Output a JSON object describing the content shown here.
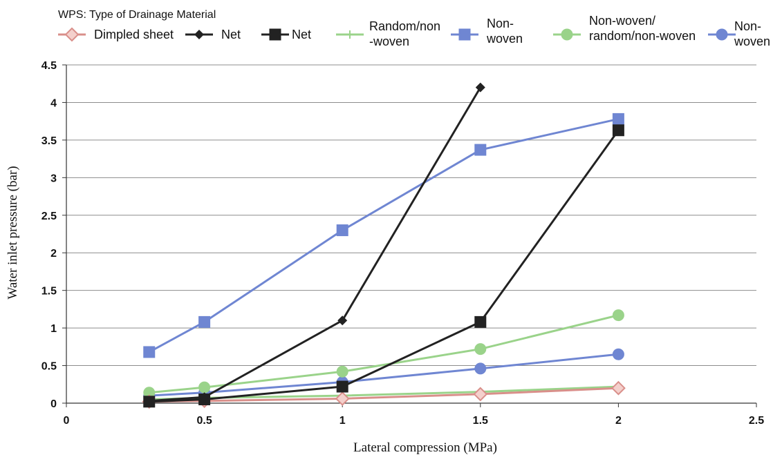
{
  "chart_data": {
    "type": "line",
    "legend_title": "WPS: Type of Drainage Material",
    "xlabel": "Lateral compression (MPa)",
    "ylabel": "Water inlet pressure (bar)",
    "xlim": [
      0,
      2.5
    ],
    "ylim": [
      0,
      4.5
    ],
    "xticks": [
      "0",
      "0.5",
      "1",
      "1.5",
      "2",
      "2.5"
    ],
    "yticks": [
      "0",
      "0.5",
      "1",
      "1.5",
      "2",
      "2.5",
      "3",
      "3.5",
      "4",
      "4.5"
    ],
    "grid": "horizontal",
    "legend_position": "top",
    "series": [
      {
        "name": "Dimpled sheet",
        "color": "#d98f8a",
        "marker": "diamond-open",
        "points": [
          [
            0.3,
            0.02
          ],
          [
            0.5,
            0.03
          ],
          [
            1.0,
            0.06
          ],
          [
            1.5,
            0.12
          ],
          [
            2.0,
            0.2
          ]
        ]
      },
      {
        "name": "Net",
        "color": "#222222",
        "marker": "diamond",
        "points": [
          [
            0.3,
            0.03
          ],
          [
            0.5,
            0.08
          ],
          [
            1.0,
            1.1
          ],
          [
            1.5,
            4.2
          ]
        ]
      },
      {
        "name": "Net",
        "color": "#222222",
        "marker": "square",
        "points": [
          [
            0.3,
            0.02
          ],
          [
            0.5,
            0.05
          ],
          [
            1.0,
            0.22
          ],
          [
            1.5,
            1.08
          ],
          [
            2.0,
            3.63
          ]
        ]
      },
      {
        "name_lines": [
          "Random/non",
          "-woven"
        ],
        "color": "#9ad38a",
        "marker": "star",
        "points": [
          [
            0.3,
            0.05
          ],
          [
            0.5,
            0.07
          ],
          [
            1.0,
            0.1
          ],
          [
            1.5,
            0.15
          ],
          [
            2.0,
            0.22
          ]
        ]
      },
      {
        "name_lines": [
          "Non-",
          "woven"
        ],
        "color": "#6f86d2",
        "marker": "square",
        "points": [
          [
            0.3,
            0.68
          ],
          [
            0.5,
            1.08
          ],
          [
            1.0,
            2.3
          ],
          [
            1.5,
            3.37
          ],
          [
            2.0,
            3.78
          ]
        ]
      },
      {
        "name_lines": [
          "Non-woven/",
          "random/non-woven"
        ],
        "color": "#9ad38a",
        "marker": "circle",
        "points": [
          [
            0.3,
            0.14
          ],
          [
            0.5,
            0.21
          ],
          [
            1.0,
            0.42
          ],
          [
            1.5,
            0.72
          ],
          [
            2.0,
            1.17
          ]
        ]
      },
      {
        "name_lines": [
          "Non-",
          "woven"
        ],
        "color": "#6f86d2",
        "marker": "circle",
        "points": [
          [
            0.3,
            0.1
          ],
          [
            0.5,
            0.14
          ],
          [
            1.0,
            0.28
          ],
          [
            1.5,
            0.46
          ],
          [
            2.0,
            0.65
          ]
        ]
      }
    ]
  }
}
